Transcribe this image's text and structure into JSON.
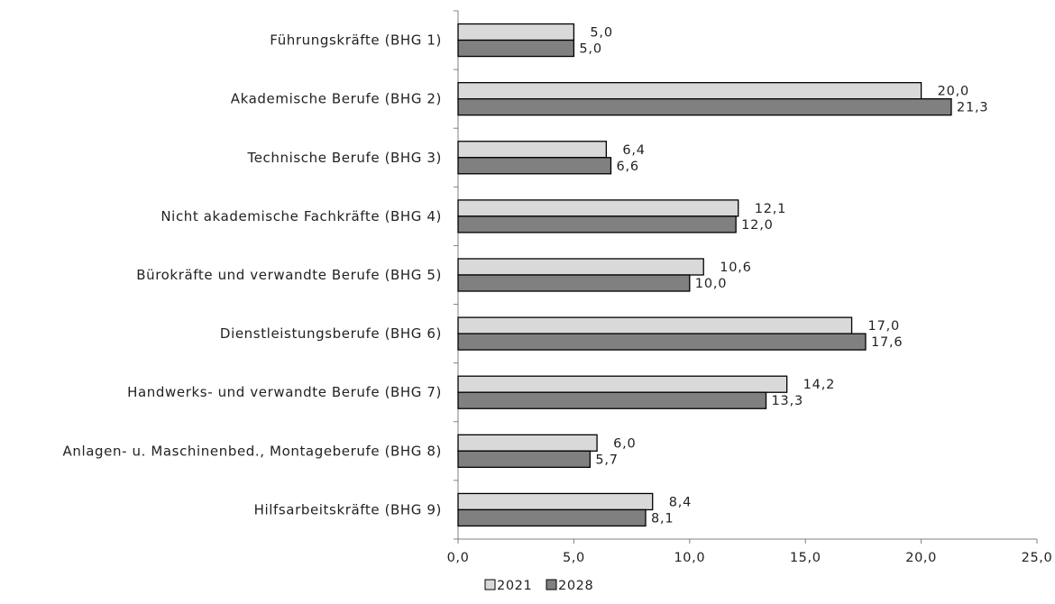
{
  "chart_data": {
    "type": "bar",
    "orientation": "horizontal",
    "categories": [
      "Führungskräfte (BHG 1)",
      "Akademische Berufe (BHG 2)",
      "Technische Berufe (BHG 3)",
      "Nicht akademische Fachkräfte (BHG 4)",
      "Bürokräfte und verwandte Berufe (BHG 5)",
      "Dienstleistungsberufe (BHG 6)",
      "Handwerks- und verwandte Berufe (BHG 7)",
      "Anlagen- u. Maschinenbed., Montageberufe (BHG 8)",
      "Hilfsarbeitskräfte (BHG 9)"
    ],
    "series": [
      {
        "name": "2021",
        "color": "#d9d9d9",
        "values": [
          5.0,
          20.0,
          6.4,
          12.1,
          10.6,
          17.0,
          14.2,
          6.0,
          8.4
        ],
        "labels": [
          "5,0",
          "20,0",
          "6,4",
          "12,1",
          "10,6",
          "17,0",
          "14,2",
          "6,0",
          "8,4"
        ]
      },
      {
        "name": "2028",
        "color": "#808080",
        "values": [
          5.0,
          21.3,
          6.6,
          12.0,
          10.0,
          17.6,
          13.3,
          5.7,
          8.1
        ],
        "labels": [
          "5,0",
          "21,3",
          "6,6",
          "12,0",
          "10,0",
          "17,6",
          "13,3",
          "5,7",
          "8,1"
        ]
      }
    ],
    "xlim": [
      0,
      25
    ],
    "x_ticks": [
      0,
      5,
      10,
      15,
      20,
      25
    ],
    "x_tick_labels": [
      "0,0",
      "5,0",
      "10,0",
      "15,0",
      "20,0",
      "25,0"
    ],
    "title": "",
    "xlabel": "",
    "ylabel": "",
    "grid": false,
    "legend_position": "bottom"
  }
}
